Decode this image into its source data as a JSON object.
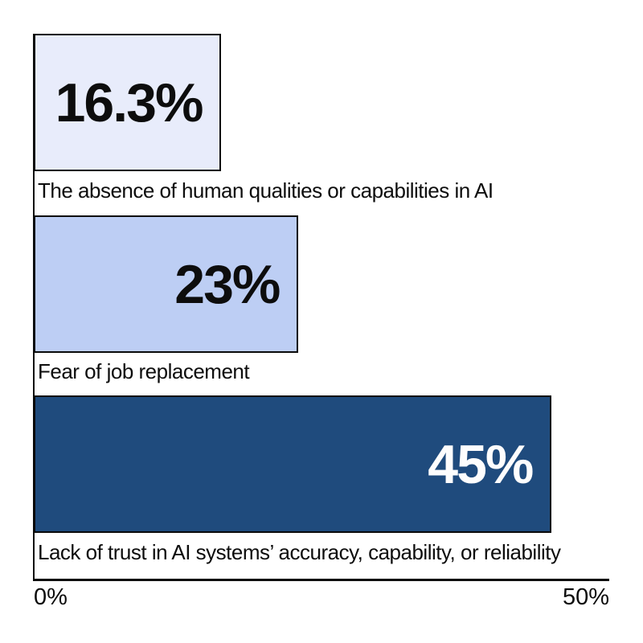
{
  "chart_data": {
    "type": "bar",
    "orientation": "horizontal",
    "categories": [
      "The absence of human qualities or capabilities in AI",
      "Fear of job replacement",
      "Lack of trust in AI systems’ accuracy, capability, or reliability"
    ],
    "values": [
      16.3,
      23,
      45
    ],
    "value_labels": [
      "16.3%",
      "23%",
      "45%"
    ],
    "xlim": [
      0,
      50
    ],
    "x_tick_labels": [
      "0%",
      "50%"
    ],
    "bar_colors": [
      "#e8ecfb",
      "#bdcef4",
      "#1f4b7d"
    ],
    "bar_border_color": "#0a0a0a",
    "value_label_colors": [
      "#0d0d0d",
      "#0d0d0d",
      "#fdfdfd"
    ],
    "axis_color": "#0a0a0a",
    "grid": false,
    "legend": false
  }
}
